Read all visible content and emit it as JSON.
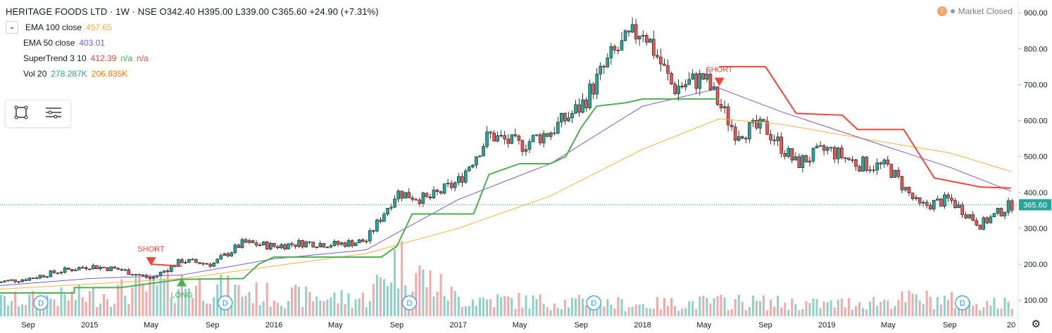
{
  "header": {
    "symbol": "HERITAGE FOODS LTD · 1W · NSE",
    "open": "O342.40",
    "high": "H395.00",
    "low": "L339.00",
    "close": "C365.60",
    "change": "+24.90 (+7.31%)",
    "market_status": "Market Closed"
  },
  "indicators": [
    {
      "name": "EMA 100 close",
      "value": "457.65",
      "color": "#f4b43c"
    },
    {
      "name": "EMA 50 close",
      "value": "403.01",
      "color": "#7e57c2"
    },
    {
      "name": "SuperTrend 3 10",
      "value": "412.39",
      "extra1": "n/a",
      "extra2": "n/a",
      "color": "#f44336",
      "color2": "#4caf50"
    },
    {
      "name": "Vol 20",
      "value": "278.287K",
      "value2": "206.835K",
      "color": "#26a69a",
      "color2": "#f57c00"
    }
  ],
  "colors": {
    "up": "#26a69a",
    "down": "#ef5350",
    "st_up": "#4caf50",
    "st_down": "#f44336",
    "ema100": "#f4b43c",
    "ema50": "#7e57c2",
    "price_line": "#26a69a"
  },
  "signals": [
    {
      "label": "SHORT",
      "x": "2015-05",
      "y": 200
    },
    {
      "label": "LONG",
      "x": "2015-07",
      "y": 158
    },
    {
      "label": "SHORT",
      "x": "2018-06",
      "y": 700
    }
  ],
  "dividend_marker": "D",
  "current_price_label": "365.60",
  "chart_data": {
    "type": "candlestick",
    "y_axis_ticks": [
      "900.00",
      "800.00",
      "700.00",
      "600.00",
      "500.00",
      "400.00",
      "300.00",
      "200.00",
      "100.00"
    ],
    "ylim": [
      75,
      920
    ],
    "x_axis_labels": [
      "Sep",
      "2015",
      "May",
      "Sep",
      "2016",
      "May",
      "Sep",
      "2017",
      "May",
      "Sep",
      "2018",
      "May",
      "Sep",
      "2019",
      "May",
      "Sep",
      "20"
    ],
    "x_axis_months": [
      "2014-09",
      "2015-01",
      "2015-05",
      "2015-09",
      "2016-01",
      "2016-05",
      "2016-09",
      "2017-01",
      "2017-05",
      "2017-09",
      "2018-01",
      "2018-05",
      "2018-09",
      "2019-01",
      "2019-05",
      "2019-09",
      "2020-01"
    ],
    "close_series": [
      [
        "2014-07",
        150
      ],
      [
        "2014-09",
        160
      ],
      [
        "2014-11",
        180
      ],
      [
        "2015-01",
        195
      ],
      [
        "2015-03",
        185
      ],
      [
        "2015-05",
        160
      ],
      [
        "2015-07",
        210
      ],
      [
        "2015-09",
        200
      ],
      [
        "2015-11",
        260
      ],
      [
        "2016-01",
        250
      ],
      [
        "2016-03",
        260
      ],
      [
        "2016-05",
        255
      ],
      [
        "2016-07",
        265
      ],
      [
        "2016-09",
        400
      ],
      [
        "2016-11",
        380
      ],
      [
        "2017-01",
        430
      ],
      [
        "2017-03",
        560
      ],
      [
        "2017-05",
        530
      ],
      [
        "2017-07",
        570
      ],
      [
        "2017-09",
        640
      ],
      [
        "2017-11",
        780
      ],
      [
        "2018-01",
        860
      ],
      [
        "2018-03",
        690
      ],
      [
        "2018-05",
        720
      ],
      [
        "2018-07",
        570
      ],
      [
        "2018-09",
        580
      ],
      [
        "2018-11",
        480
      ],
      [
        "2019-01",
        520
      ],
      [
        "2019-03",
        480
      ],
      [
        "2019-05",
        470
      ],
      [
        "2019-07",
        360
      ],
      [
        "2019-09",
        380
      ],
      [
        "2019-11",
        310
      ],
      [
        "2020-01",
        366
      ]
    ],
    "ema100": [
      [
        "2014-07",
        130
      ],
      [
        "2015-01",
        145
      ],
      [
        "2015-07",
        160
      ],
      [
        "2016-01",
        195
      ],
      [
        "2016-07",
        230
      ],
      [
        "2017-01",
        300
      ],
      [
        "2017-07",
        390
      ],
      [
        "2018-01",
        520
      ],
      [
        "2018-06",
        605
      ],
      [
        "2018-10",
        590
      ],
      [
        "2019-04",
        545
      ],
      [
        "2019-09",
        510
      ],
      [
        "2020-01",
        458
      ]
    ],
    "ema50": [
      [
        "2014-07",
        140
      ],
      [
        "2015-01",
        160
      ],
      [
        "2015-07",
        170
      ],
      [
        "2016-01",
        215
      ],
      [
        "2016-07",
        240
      ],
      [
        "2017-01",
        380
      ],
      [
        "2017-07",
        480
      ],
      [
        "2018-01",
        640
      ],
      [
        "2018-06",
        690
      ],
      [
        "2018-10",
        625
      ],
      [
        "2019-04",
        540
      ],
      [
        "2019-09",
        470
      ],
      [
        "2020-01",
        403
      ]
    ],
    "supertrend_up": [
      [
        "2014-07",
        120
      ],
      [
        "2014-12",
        120
      ],
      [
        "2014-12",
        135
      ],
      [
        "2015-03",
        135
      ],
      [
        "2015-07",
        158
      ],
      [
        "2015-11",
        160
      ],
      [
        "2015-12",
        200
      ],
      [
        "2016-01",
        220
      ],
      [
        "2016-08",
        220
      ],
      [
        "2016-09",
        250
      ],
      [
        "2016-10",
        340
      ],
      [
        "2017-02",
        340
      ],
      [
        "2017-03",
        450
      ],
      [
        "2017-05",
        480
      ],
      [
        "2017-07",
        480
      ],
      [
        "2017-08",
        500
      ],
      [
        "2017-09",
        580
      ],
      [
        "2017-10",
        640
      ],
      [
        "2017-12",
        650
      ],
      [
        "2018-01",
        660
      ],
      [
        "2018-06",
        660
      ]
    ],
    "supertrend_down": [
      [
        "2015-05",
        200
      ],
      [
        "2015-07",
        195
      ],
      [
        "2018-06",
        750
      ],
      [
        "2018-09",
        750
      ],
      [
        "2018-11",
        620
      ],
      [
        "2019-02",
        615
      ],
      [
        "2019-03",
        575
      ],
      [
        "2019-06",
        575
      ],
      [
        "2019-08",
        440
      ],
      [
        "2019-11",
        415
      ],
      [
        "2020-01",
        412
      ]
    ],
    "volume_pattern": [
      [
        "2014-07",
        0.25
      ],
      [
        "2015-01",
        0.35
      ],
      [
        "2015-07",
        0.55
      ],
      [
        "2016-01",
        0.35
      ],
      [
        "2016-07",
        0.3
      ],
      [
        "2016-09",
        0.95
      ],
      [
        "2017-01",
        0.3
      ],
      [
        "2017-07",
        0.25
      ],
      [
        "2018-01",
        0.2
      ],
      [
        "2018-07",
        0.25
      ],
      [
        "2019-01",
        0.2
      ],
      [
        "2019-07",
        0.3
      ],
      [
        "2020-01",
        0.2
      ]
    ]
  }
}
